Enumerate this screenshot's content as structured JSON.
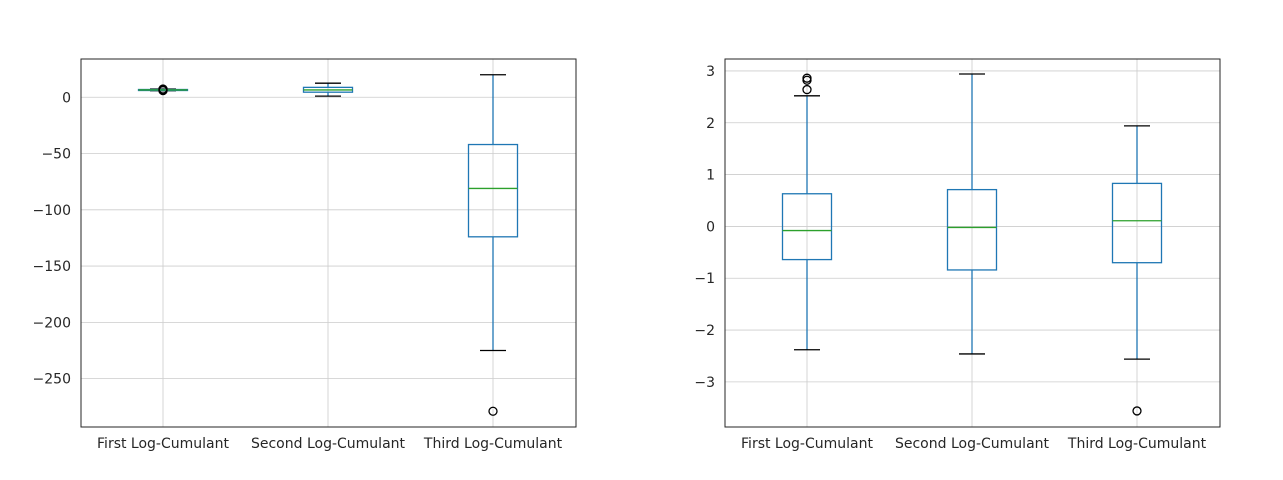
{
  "chart_data": [
    {
      "type": "box",
      "categories": [
        "First Log-Cumulant",
        "Second Log-Cumulant",
        "Third Log-Cumulant"
      ],
      "ylim": [
        -293,
        34
      ],
      "yticks": [
        0,
        -50,
        -100,
        -150,
        -200,
        -250
      ],
      "ytick_labels": [
        "0",
        "−50",
        "−100",
        "−150",
        "−200",
        "−250"
      ],
      "grid": true,
      "boxes": [
        {
          "whislo": 5.8,
          "q1": 6.2,
          "med": 6.5,
          "q3": 6.9,
          "whishi": 7.3,
          "fliers": [
            7.3,
            6.5,
            5.9
          ]
        },
        {
          "whislo": 1.0,
          "q1": 4.5,
          "med": 6.5,
          "q3": 8.8,
          "whishi": 12.5,
          "fliers": []
        },
        {
          "whislo": -225,
          "q1": -124,
          "med": -81,
          "q3": -42,
          "whishi": 20,
          "fliers": [
            -279
          ]
        }
      ]
    },
    {
      "type": "box",
      "categories": [
        "First Log-Cumulant",
        "Second Log-Cumulant",
        "Third Log-Cumulant"
      ],
      "ylim": [
        -3.87,
        3.23
      ],
      "yticks": [
        3,
        2,
        1,
        0,
        -1,
        -2,
        -3
      ],
      "ytick_labels": [
        "3",
        "2",
        "1",
        "0",
        "−1",
        "−2",
        "−3"
      ],
      "grid": true,
      "boxes": [
        {
          "whislo": -2.38,
          "q1": -0.64,
          "med": -0.08,
          "q3": 0.63,
          "whishi": 2.52,
          "fliers": [
            2.86,
            2.82,
            2.64
          ]
        },
        {
          "whislo": -2.46,
          "q1": -0.84,
          "med": -0.02,
          "q3": 0.71,
          "whishi": 2.94,
          "fliers": []
        },
        {
          "whislo": -2.56,
          "q1": -0.7,
          "med": 0.11,
          "q3": 0.83,
          "whishi": 1.94,
          "fliers": [
            -3.56
          ]
        }
      ]
    }
  ],
  "colors": {
    "box": "#1f77b4",
    "median": "#2ca02c",
    "whisker": "#1f77b4",
    "cap": "#000000",
    "flier": "#000000",
    "grid": "#cccccc",
    "frame": "#262626"
  }
}
